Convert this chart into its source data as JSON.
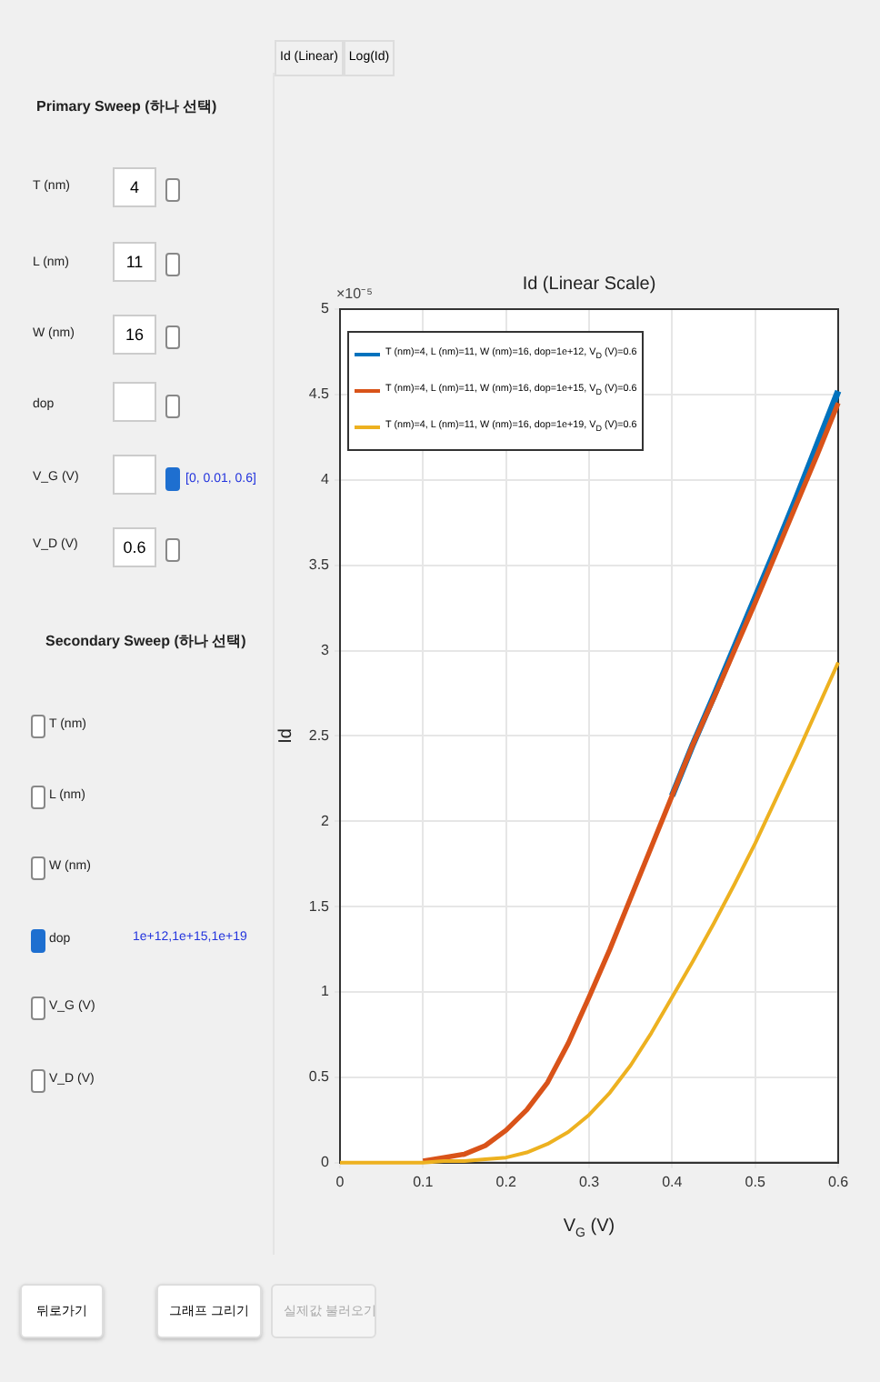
{
  "chart_data": {
    "type": "line",
    "title": "Id (Linear Scale)",
    "xlabel": "V$_{G}$ (V)",
    "ylabel": "Id",
    "x": [
      0,
      0.05,
      0.1,
      0.125,
      0.15,
      0.175,
      0.2,
      0.225,
      0.25,
      0.275,
      0.3,
      0.325,
      0.35,
      0.375,
      0.4,
      0.425,
      0.45,
      0.475,
      0.5,
      0.525,
      0.55,
      0.575,
      0.6
    ],
    "series": [
      {
        "name": "T (nm)=4, L (nm)=11, W (nm)=16, dop=1e+12, V$_{D}$ (V)=0.6",
        "color": "#0072bd",
        "values": [
          null,
          null,
          null,
          null,
          null,
          null,
          null,
          null,
          null,
          null,
          null,
          null,
          null,
          null,
          2.15,
          2.45,
          2.73,
          3.02,
          3.31,
          3.6,
          3.9,
          4.21,
          4.52
        ]
      },
      {
        "name": "T (nm)=4, L (nm)=11, W (nm)=16, dop=1e+15, V$_{D}$ (V)=0.6",
        "color": "#d95319",
        "values": [
          null,
          null,
          0.01,
          0.03,
          0.05,
          0.1,
          0.19,
          0.31,
          0.47,
          0.7,
          0.97,
          1.25,
          1.55,
          1.85,
          2.15,
          2.45,
          2.72,
          3.0,
          3.28,
          3.57,
          3.86,
          4.15,
          4.45
        ]
      },
      {
        "name": "T (nm)=4, L (nm)=11, W (nm)=16, dop=1e+19, V$_{D}$ (V)=0.6",
        "color": "#edb120",
        "values": [
          0,
          0,
          0,
          0.01,
          0.01,
          0.02,
          0.03,
          0.06,
          0.11,
          0.18,
          0.28,
          0.41,
          0.57,
          0.76,
          0.97,
          1.18,
          1.4,
          1.63,
          1.87,
          2.13,
          2.39,
          2.66,
          2.93
        ]
      }
    ],
    "xlim": [
      0,
      0.6
    ],
    "xticks": [
      0,
      0.1,
      0.2,
      0.3,
      0.4,
      0.5,
      0.6
    ],
    "ylim": [
      0,
      5
    ],
    "yticks": [
      0,
      0.5,
      1,
      1.5,
      2,
      2.5,
      3,
      3.5,
      4,
      4.5,
      5
    ],
    "grid": true,
    "legend": "top left",
    "marker": "none",
    "line_style": "solid",
    "annotations": [
      "×10⁻⁵",
      "Id (Linear)",
      "Log(Id)",
      "Primary Sweep (하나 선택)",
      "T (nm)",
      "4",
      "L (nm)",
      "11",
      "W (nm)",
      "16",
      "dop",
      "V_G (V)",
      "[0, 0.01, 0.6]",
      "V_D (V)",
      "0.6",
      "Secondary Sweep (하나 선택)",
      "T (nm)",
      "L (nm)",
      "W (nm)",
      "dop",
      "V_G (V)",
      "V_D (V)",
      "1e+12,1e+15,1e+19",
      "뒤로가기",
      "그래프 그리기",
      "실제값 불러오기"
    ]
  }
}
